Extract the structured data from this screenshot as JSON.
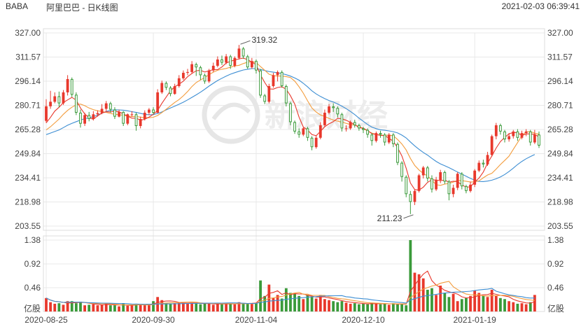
{
  "header": {
    "symbol": "BABA",
    "title": "阿里巴巴 - 日K线图",
    "timestamp": "2021-02-03 06:39:41"
  },
  "watermark": "新浪财经",
  "colors": {
    "up": "#e8382c",
    "down": "#3a9a3a",
    "ma5": "#e8382c",
    "ma10": "#f39c3c",
    "ma20": "#3d8ed3",
    "grid": "#e9e9e9",
    "axis_text": "#444444"
  },
  "chart_data": {
    "type": "candlestick",
    "price_ticks": [
      "327.00",
      "311.57",
      "296.14",
      "280.71",
      "265.28",
      "249.84",
      "234.41",
      "218.98",
      "203.55"
    ],
    "price_range": [
      203.55,
      327.0
    ],
    "volume_ticks": [
      "1.38",
      "0.92",
      "0.46"
    ],
    "volume_unit": "亿股",
    "volume_range": [
      0,
      1.38
    ],
    "date_labels": [
      {
        "label": "2020-08-25",
        "index": 0
      },
      {
        "label": "2020-09-30",
        "index": 25
      },
      {
        "label": "2020-11-04",
        "index": 49
      },
      {
        "label": "2020-12-10",
        "index": 74
      },
      {
        "label": "2021-01-19",
        "index": 100
      }
    ],
    "annotations": [
      {
        "label": "319.32",
        "index": 45,
        "price": 319.32,
        "type": "high"
      },
      {
        "label": "211.23",
        "index": 86,
        "price": 211.23,
        "type": "low"
      }
    ],
    "ohlc": [
      [
        270.8,
        280.1,
        284.6,
        269.5
      ],
      [
        280.1,
        283.0,
        290.0,
        278.5
      ],
      [
        283.0,
        286.5,
        289.0,
        282.0
      ],
      [
        286.5,
        282.0,
        289.5,
        279.5
      ],
      [
        282.0,
        289.0,
        290.5,
        281.0
      ],
      [
        289.0,
        297.5,
        300.0,
        287.0
      ],
      [
        297.5,
        287.5,
        298.5,
        286.0
      ],
      [
        287.5,
        276.0,
        289.0,
        274.5
      ],
      [
        276.0,
        269.0,
        278.0,
        266.5
      ],
      [
        269.0,
        274.5,
        276.0,
        267.5
      ],
      [
        274.5,
        272.0,
        276.5,
        270.5
      ],
      [
        272.0,
        275.0,
        277.0,
        271.0
      ],
      [
        275.0,
        275.8,
        277.5,
        273.5
      ],
      [
        275.8,
        278.5,
        281.5,
        275.0
      ],
      [
        278.5,
        282.0,
        283.5,
        277.0
      ],
      [
        282.0,
        278.0,
        283.0,
        276.0
      ],
      [
        278.0,
        273.5,
        279.5,
        272.0
      ],
      [
        273.5,
        276.5,
        278.0,
        273.0
      ],
      [
        276.5,
        269.0,
        277.0,
        267.5
      ],
      [
        269.0,
        275.0,
        275.5,
        268.0
      ],
      [
        275.0,
        275.0,
        277.0,
        273.5
      ],
      [
        275.0,
        267.5,
        276.0,
        264.5
      ],
      [
        267.5,
        272.0,
        273.5,
        266.0
      ],
      [
        272.0,
        276.0,
        277.5,
        271.0
      ],
      [
        276.0,
        278.0,
        279.0,
        274.5
      ],
      [
        278.0,
        276.0,
        279.5,
        275.0
      ],
      [
        276.0,
        289.0,
        291.0,
        275.5
      ],
      [
        289.0,
        295.0,
        296.5,
        288.0
      ],
      [
        295.0,
        292.0,
        296.0,
        290.5
      ],
      [
        292.0,
        288.0,
        293.0,
        286.5
      ],
      [
        288.0,
        293.0,
        294.5,
        287.5
      ],
      [
        293.0,
        298.0,
        300.0,
        292.0
      ],
      [
        298.0,
        301.5,
        303.0,
        297.0
      ],
      [
        301.5,
        302.0,
        304.0,
        300.0
      ],
      [
        302.0,
        307.0,
        309.0,
        301.0
      ],
      [
        307.0,
        305.0,
        308.0,
        299.5
      ],
      [
        305.0,
        300.0,
        306.0,
        297.0
      ],
      [
        300.0,
        296.0,
        301.0,
        294.5
      ],
      [
        296.0,
        303.0,
        304.0,
        295.0
      ],
      [
        303.0,
        306.0,
        308.0,
        302.0
      ],
      [
        306.0,
        310.0,
        312.0,
        305.0
      ],
      [
        310.0,
        308.0,
        312.5,
        306.5
      ],
      [
        308.0,
        312.0,
        313.5,
        307.0
      ],
      [
        312.0,
        306.0,
        313.0,
        304.0
      ],
      [
        306.0,
        311.0,
        312.0,
        305.0
      ],
      [
        311.0,
        317.0,
        319.32,
        310.0
      ],
      [
        317.0,
        312.0,
        318.0,
        310.5
      ],
      [
        312.0,
        305.0,
        313.0,
        304.0
      ],
      [
        305.0,
        309.0,
        311.0,
        304.0
      ],
      [
        309.0,
        303.0,
        310.0,
        301.0
      ],
      [
        303.0,
        287.0,
        304.0,
        285.5
      ],
      [
        287.0,
        283.0,
        288.0,
        281.5
      ],
      [
        283.0,
        293.0,
        294.5,
        282.0
      ],
      [
        293.0,
        300.0,
        301.5,
        292.0
      ],
      [
        300.0,
        302.0,
        303.0,
        296.0
      ],
      [
        302.0,
        293.0,
        303.0,
        292.0
      ],
      [
        293.0,
        282.0,
        294.0,
        280.0
      ],
      [
        282.0,
        270.0,
        283.0,
        268.0
      ],
      [
        270.0,
        264.0,
        271.0,
        262.5
      ],
      [
        264.0,
        262.0,
        266.0,
        260.0
      ],
      [
        262.0,
        266.0,
        267.0,
        261.0
      ],
      [
        266.0,
        260.0,
        267.0,
        258.0
      ],
      [
        260.0,
        254.0,
        261.0,
        252.0
      ],
      [
        254.0,
        260.0,
        261.5,
        253.0
      ],
      [
        260.0,
        268.0,
        270.0,
        259.0
      ],
      [
        268.0,
        276.0,
        278.0,
        267.0
      ],
      [
        276.0,
        280.0,
        281.5,
        275.0
      ],
      [
        280.0,
        279.0,
        282.0,
        276.5
      ],
      [
        279.0,
        275.0,
        280.0,
        273.0
      ],
      [
        275.0,
        266.0,
        276.0,
        264.0
      ],
      [
        266.0,
        266.0,
        268.0,
        264.0
      ],
      [
        266.0,
        270.0,
        271.0,
        265.0
      ],
      [
        270.0,
        268.0,
        271.5,
        266.5
      ],
      [
        268.0,
        266.0,
        269.0,
        264.5
      ],
      [
        266.0,
        265.0,
        267.0,
        263.0
      ],
      [
        265.0,
        262.0,
        266.0,
        260.0
      ],
      [
        262.0,
        258.0,
        263.0,
        255.0
      ],
      [
        258.0,
        263.0,
        264.0,
        257.0
      ],
      [
        263.0,
        262.0,
        264.5,
        260.0
      ],
      [
        262.0,
        257.0,
        263.0,
        255.0
      ],
      [
        257.0,
        262.0,
        263.0,
        256.0
      ],
      [
        262.0,
        256.0,
        263.0,
        254.0
      ],
      [
        256.0,
        244.0,
        257.0,
        242.5
      ],
      [
        244.0,
        235.0,
        245.0,
        232.0
      ],
      [
        235.0,
        224.0,
        236.0,
        222.0
      ],
      [
        224.0,
        219.0,
        226.0,
        211.23
      ],
      [
        219.0,
        226.0,
        227.0,
        217.0
      ],
      [
        226.0,
        236.0,
        237.0,
        225.0
      ],
      [
        236.0,
        241.0,
        242.0,
        234.0
      ],
      [
        241.0,
        234.0,
        242.0,
        232.0
      ],
      [
        234.0,
        227.0,
        236.0,
        225.0
      ],
      [
        227.0,
        233.0,
        235.0,
        226.0
      ],
      [
        233.0,
        238.0,
        239.5,
        231.0
      ],
      [
        238.0,
        232.0,
        239.0,
        230.5
      ],
      [
        232.0,
        224.0,
        233.0,
        220.0
      ],
      [
        224.0,
        228.0,
        230.0,
        222.0
      ],
      [
        228.0,
        237.0,
        238.0,
        226.5
      ],
      [
        237.0,
        229.0,
        238.0,
        227.0
      ],
      [
        229.0,
        226.0,
        230.0,
        224.5
      ],
      [
        226.0,
        230.0,
        232.0,
        225.0
      ],
      [
        230.0,
        239.0,
        240.0,
        228.5
      ],
      [
        239.0,
        244.0,
        245.5,
        238.0
      ],
      [
        244.0,
        243.0,
        246.0,
        241.0
      ],
      [
        243.0,
        249.0,
        251.0,
        242.0
      ],
      [
        249.0,
        261.0,
        262.0,
        248.0
      ],
      [
        261.0,
        268.0,
        269.5,
        259.0
      ],
      [
        268.0,
        264.0,
        269.0,
        262.0
      ],
      [
        264.0,
        259.0,
        265.0,
        257.0
      ],
      [
        259.0,
        261.0,
        263.0,
        257.5
      ],
      [
        261.0,
        264.0,
        265.0,
        259.5
      ],
      [
        264.0,
        260.0,
        265.5,
        258.0
      ],
      [
        260.0,
        263.0,
        264.5,
        259.0
      ],
      [
        263.0,
        264.0,
        265.5,
        261.0
      ],
      [
        264.0,
        257.0,
        265.0,
        255.0
      ],
      [
        257.0,
        262.0,
        265.0,
        256.0
      ],
      [
        262.0,
        255.0,
        264.0,
        253.5
      ]
    ],
    "volume": [
      0.26,
      0.18,
      0.15,
      0.16,
      0.13,
      0.2,
      0.2,
      0.16,
      0.19,
      0.12,
      0.13,
      0.14,
      0.12,
      0.13,
      0.16,
      0.12,
      0.12,
      0.1,
      0.15,
      0.11,
      0.12,
      0.15,
      0.13,
      0.12,
      0.14,
      0.2,
      0.28,
      0.22,
      0.17,
      0.15,
      0.16,
      0.18,
      0.16,
      0.15,
      0.17,
      0.16,
      0.14,
      0.15,
      0.16,
      0.13,
      0.15,
      0.14,
      0.16,
      0.15,
      0.14,
      0.18,
      0.16,
      0.15,
      0.16,
      0.17,
      0.6,
      0.3,
      0.52,
      0.26,
      0.32,
      0.25,
      0.45,
      0.36,
      0.34,
      0.3,
      0.24,
      0.32,
      0.28,
      0.25,
      0.32,
      0.24,
      0.22,
      0.2,
      0.18,
      0.2,
      0.17,
      0.15,
      0.16,
      0.14,
      0.15,
      0.14,
      0.17,
      0.16,
      0.14,
      0.15,
      0.13,
      0.16,
      0.14,
      0.15,
      0.12,
      1.38,
      0.75,
      0.72,
      0.64,
      0.42,
      0.45,
      0.32,
      0.5,
      0.36,
      0.28,
      0.34,
      0.2,
      0.24,
      0.26,
      0.3,
      0.4,
      0.36,
      0.3,
      0.28,
      0.42,
      0.3,
      0.26,
      0.24,
      0.2,
      0.18,
      0.15,
      0.16,
      0.14,
      0.18,
      0.32
    ],
    "ma5": [
      269.5,
      273,
      277,
      279.5,
      282.5,
      284.2,
      285.8,
      284,
      279,
      275.2,
      272.8,
      271.8,
      274,
      275.8,
      276.6,
      276.4,
      277,
      276.6,
      275.2,
      273.8,
      272.5,
      272.5,
      271.2,
      271.8,
      273.2,
      275,
      277.5,
      282,
      286,
      290,
      292.6,
      294.2,
      296.2,
      299,
      301,
      302.8,
      303.1,
      302,
      302.8,
      303.5,
      303.5,
      305.2,
      307.7,
      308.9,
      309.7,
      310.4,
      310.9,
      309.9,
      308.4,
      306.6,
      300.2,
      295.3,
      291.2,
      291.1,
      292.1,
      292.6,
      291,
      286.9,
      281.5,
      273.2,
      266.9,
      264.9,
      262.1,
      261.3,
      264.1,
      267,
      268.9,
      270.3,
      272.4,
      272.1,
      271.2,
      269.9,
      268.4,
      266.5,
      266.1,
      264.6,
      262.6,
      262.1,
      261.5,
      261.4,
      259.7,
      257.7,
      253.6,
      248.4,
      240.6,
      231.1,
      226.9,
      226.6,
      228.4,
      231.5,
      233.1,
      233,
      232.6,
      233,
      231.6,
      232.2,
      232,
      229.8,
      228.5,
      228.6,
      231.9,
      234.2,
      238.1,
      243.7,
      248.4,
      253.4,
      257.6,
      260.2,
      262.5,
      263.4,
      263.2,
      261.4,
      262.5,
      262.4,
      262.2,
      260.5
    ],
    "ma10": [
      265,
      267,
      269.5,
      272,
      275,
      277.5,
      279.5,
      281,
      281.5,
      280.5,
      279,
      278,
      277.2,
      276.8,
      276.2,
      275.5,
      275,
      274.8,
      274.3,
      273.9,
      273.6,
      273.6,
      273.2,
      272.8,
      272.8,
      273.1,
      274.2,
      276.1,
      278.2,
      280.4,
      282.6,
      284.4,
      286.8,
      289.5,
      292.7,
      295.3,
      296.9,
      298.5,
      300.3,
      301.9,
      303.1,
      303.8,
      304.3,
      305.1,
      305.9,
      306.3,
      307.4,
      308.3,
      308.6,
      308.1,
      305.5,
      303.1,
      300.6,
      299.7,
      299.4,
      299.4,
      299.1,
      298.5,
      296.2,
      292.6,
      288.5,
      283.6,
      279.1,
      276.4,
      274.6,
      273.6,
      272.4,
      271.3,
      270.6,
      270,
      269.2,
      268.5,
      268.1,
      267.2,
      265.9,
      264.3,
      263,
      262.1,
      261.7,
      261.6,
      261.6,
      261.3,
      258.9,
      256,
      252.2,
      246.8,
      242.3,
      239.4,
      237.2,
      235.6,
      232.8,
      230,
      229.6,
      230.4,
      230.8,
      231.7,
      232.7,
      232.6,
      232.2,
      231.7,
      231.8,
      232.5,
      234.4,
      236.2,
      237.3,
      240,
      242.9,
      245.5,
      248.2,
      252.6,
      256.9,
      261.2,
      263.8,
      263.9,
      262.9,
      262.3
    ],
    "ma20": [
      262,
      263,
      264,
      265,
      266.5,
      268,
      269.2,
      270.3,
      271.3,
      272.2,
      272.8,
      273.5,
      274.5,
      275.7,
      276.8,
      277.5,
      277.9,
      277.8,
      277.6,
      277.2,
      276.7,
      276.2,
      275.6,
      275,
      274.7,
      274.8,
      275.5,
      276.5,
      277.8,
      279,
      280.2,
      281.4,
      282.7,
      284.2,
      285.8,
      287.4,
      289.1,
      291,
      293,
      294.8,
      296.6,
      298,
      299.4,
      300.6,
      301.6,
      302.5,
      303.3,
      303.8,
      304.2,
      304.2,
      303.6,
      303,
      302.3,
      301.9,
      301.5,
      301,
      300.3,
      299.4,
      298.2,
      296.8,
      294.8,
      292.5,
      290,
      288,
      286.4,
      285,
      283.8,
      282.8,
      281.6,
      280.2,
      278.6,
      276.8,
      274.8,
      272.5,
      270.5,
      268.5,
      266.8,
      265.8,
      265.1,
      264.8,
      264.4,
      263.9,
      263.1,
      261.7,
      259.9,
      257.3,
      254.8,
      252.6,
      250.6,
      248.9,
      246.8,
      244.9,
      243.3,
      242.1,
      240.9,
      239.5,
      238.1,
      236.8,
      235.4,
      234,
      232.9,
      232.1,
      232,
      232.3,
      232.9,
      233.8,
      235,
      236.5,
      238.4,
      240.6,
      242.9,
      244.9,
      246.6,
      248,
      249.3
    ]
  }
}
